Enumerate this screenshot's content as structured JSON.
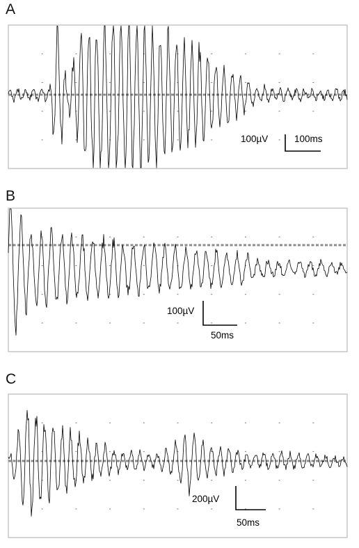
{
  "chart_data": [
    {
      "type": "line",
      "panel_label": "A",
      "title": "",
      "xlabel": "",
      "ylabel": "",
      "grid": "dotted",
      "baseline_dashed": true,
      "scale_bar": {
        "amplitude": "100µV",
        "time": "100ms"
      },
      "series": [
        {
          "description_free_trace": true,
          "envelope": {
            "x": [
              0,
              60,
              70,
              85,
              110,
              130,
              160,
              200,
              240,
              280,
              320,
              350,
              380,
              420,
              490
            ],
            "amplitude": [
              0.06,
              0.08,
              1.0,
              0.15,
              1.0,
              1.0,
              1.0,
              0.95,
              0.8,
              0.6,
              0.35,
              0.15,
              0.08,
              0.06,
              0.06
            ]
          }
        }
      ]
    },
    {
      "type": "line",
      "panel_label": "B",
      "title": "",
      "xlabel": "",
      "ylabel": "",
      "grid": "dotted",
      "baseline_dashed": true,
      "scale_bar": {
        "amplitude": "100µV",
        "time": "50ms"
      },
      "series": [
        {
          "envelope": {
            "x": [
              0,
              30,
              100,
              200,
              300,
              355,
              360,
              420,
              490
            ],
            "amplitude": [
              1.0,
              0.55,
              0.45,
              0.35,
              0.25,
              0.2,
              0.12,
              0.1,
              0.08
            ]
          }
        }
      ]
    },
    {
      "type": "line",
      "panel_label": "C",
      "title": "",
      "xlabel": "",
      "ylabel": "",
      "grid": "dotted",
      "baseline_dashed": true,
      "scale_bar": {
        "amplitude": "200µV",
        "time": "50ms"
      },
      "series": [
        {
          "envelope": {
            "x": [
              0,
              25,
              60,
              120,
              160,
              220,
              260,
              300,
              350,
              420,
              490
            ],
            "amplitude": [
              0.05,
              0.8,
              0.6,
              0.3,
              0.15,
              0.1,
              0.45,
              0.2,
              0.1,
              0.12,
              0.05
            ]
          }
        }
      ]
    }
  ]
}
